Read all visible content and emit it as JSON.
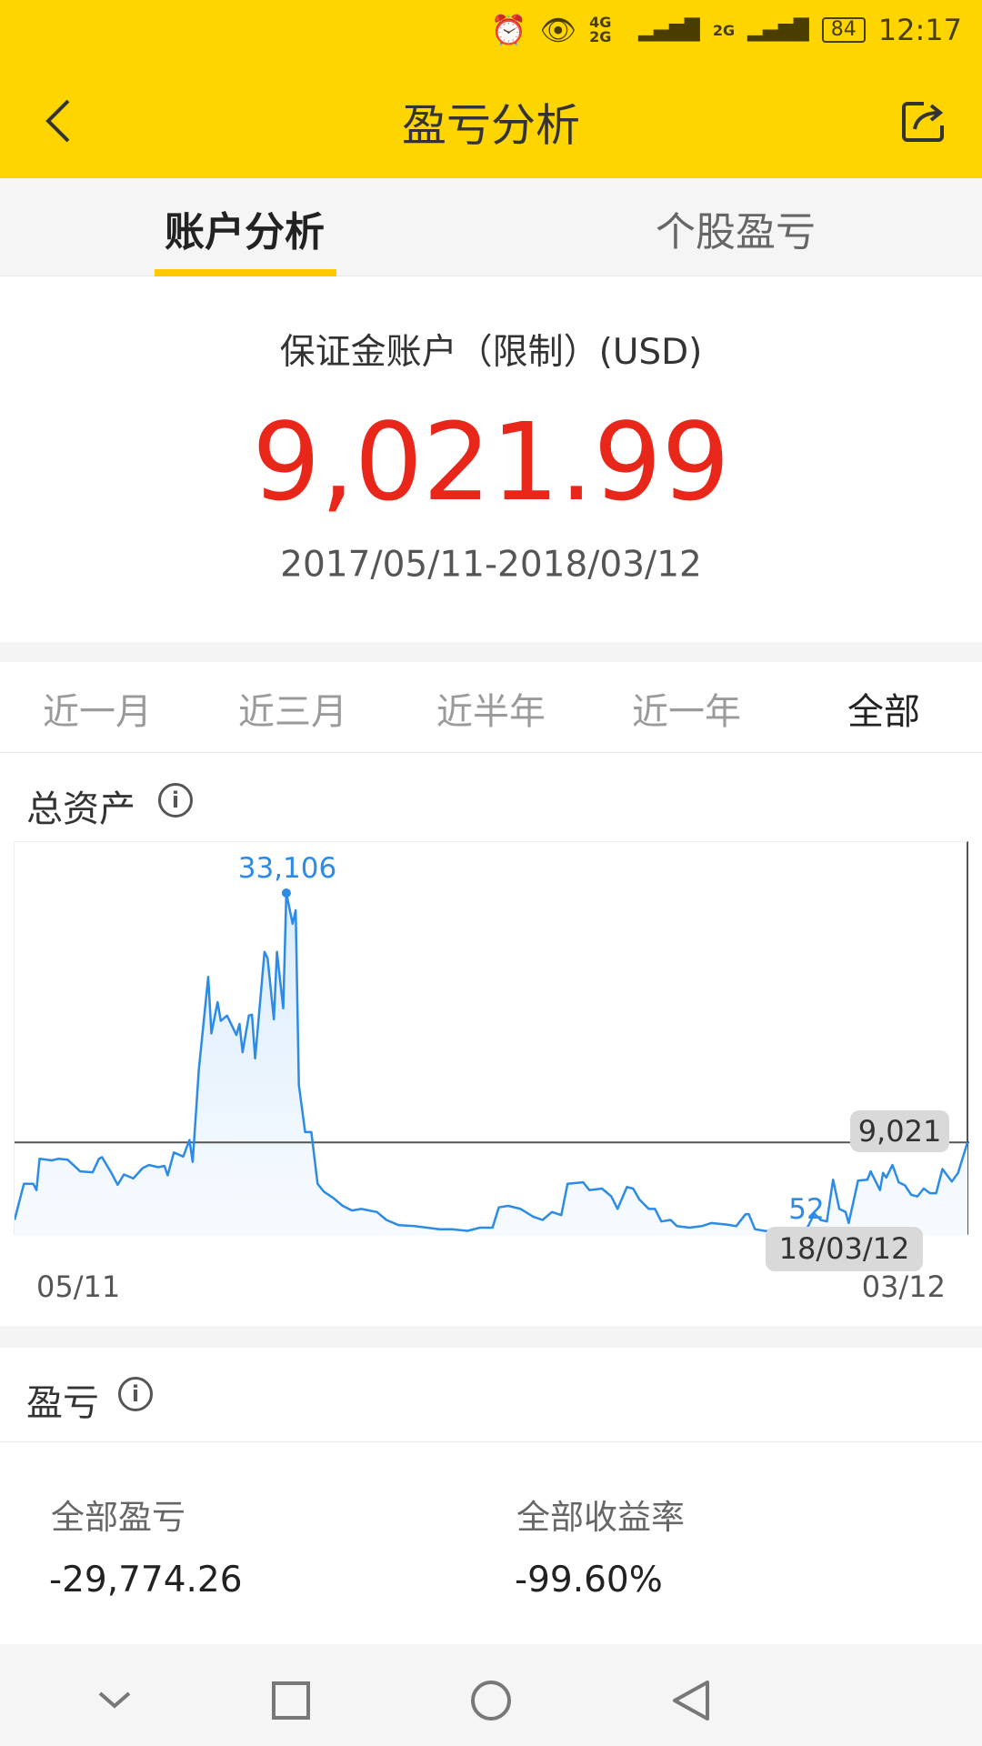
{
  "status_bar": {
    "battery": "84",
    "time": "12:17",
    "signal_1": "4G 2G",
    "signal_2": "2G"
  },
  "header": {
    "title": "盈亏分析",
    "back_icon": "chevron-left-icon",
    "share_icon": "share-icon"
  },
  "tabs": [
    {
      "label": "账户分析",
      "selected": true
    },
    {
      "label": "个股盈亏",
      "selected": false
    }
  ],
  "account": {
    "label": "保证金账户（限制）(USD)",
    "value": "9,021.99",
    "date_range": "2017/05/11-2018/03/12",
    "value_color": "#e8261a"
  },
  "periods": [
    {
      "label": "近一月"
    },
    {
      "label": "近三月"
    },
    {
      "label": "近半年"
    },
    {
      "label": "近一年"
    },
    {
      "label": "全部",
      "selected": true
    }
  ],
  "assets_section": {
    "title": "总资产"
  },
  "chart_data": {
    "type": "area",
    "line_color": "#2b8be6",
    "x_start_label": "05/11",
    "x_end_label": "03/12",
    "max_label": "33,106",
    "min_label": "52",
    "current_label": "9,021",
    "tooltip_date": "18/03/12",
    "ylim": [
      0,
      33106
    ],
    "points": [
      [
        "2017-05-11",
        1540
      ],
      [
        "2017-05-14",
        5023
      ],
      [
        "2017-05-17",
        5020
      ],
      [
        "2017-05-18",
        4420
      ],
      [
        "2017-05-19",
        7440
      ],
      [
        "2017-05-23",
        7290
      ],
      [
        "2017-05-25",
        7440
      ],
      [
        "2017-05-28",
        7350
      ],
      [
        "2017-06-01",
        6230
      ],
      [
        "2017-06-05",
        6140
      ],
      [
        "2017-06-07",
        7440
      ],
      [
        "2017-06-08",
        7600
      ],
      [
        "2017-06-11",
        6080
      ],
      [
        "2017-06-13",
        4930
      ],
      [
        "2017-06-15",
        5930
      ],
      [
        "2017-06-18",
        5540
      ],
      [
        "2017-06-21",
        6540
      ],
      [
        "2017-06-23",
        6840
      ],
      [
        "2017-06-26",
        6630
      ],
      [
        "2017-06-28",
        6750
      ],
      [
        "2017-06-29",
        5840
      ],
      [
        "2017-07-01",
        8050
      ],
      [
        "2017-07-04",
        7660
      ],
      [
        "2017-07-06",
        9260
      ],
      [
        "2017-07-07",
        7140
      ],
      [
        "2017-07-09",
        16070
      ],
      [
        "2017-07-12",
        25000
      ],
      [
        "2017-07-13",
        19550
      ],
      [
        "2017-07-15",
        22570
      ],
      [
        "2017-07-16",
        20760
      ],
      [
        "2017-07-18",
        21270
      ],
      [
        "2017-07-21",
        19400
      ],
      [
        "2017-07-22",
        20460
      ],
      [
        "2017-07-23",
        17730
      ],
      [
        "2017-07-25",
        21270
      ],
      [
        "2017-07-26",
        21360
      ],
      [
        "2017-07-27",
        17130
      ],
      [
        "2017-07-30",
        27420
      ],
      [
        "2017-07-31",
        26810
      ],
      [
        "2017-08-02",
        20910
      ],
      [
        "2017-08-03",
        27420
      ],
      [
        "2017-08-05",
        21970
      ],
      [
        "2017-08-06",
        33106
      ],
      [
        "2017-08-08",
        30140
      ],
      [
        "2017-08-09",
        31440
      ],
      [
        "2017-08-10",
        14560
      ],
      [
        "2017-08-12",
        10020
      ],
      [
        "2017-08-14",
        10020
      ],
      [
        "2017-08-16",
        5020
      ],
      [
        "2017-08-18",
        4270
      ],
      [
        "2017-08-21",
        3660
      ],
      [
        "2017-08-24",
        2900
      ],
      [
        "2017-08-27",
        2450
      ],
      [
        "2017-08-30",
        2600
      ],
      [
        "2017-09-04",
        2300
      ],
      [
        "2017-09-07",
        1540
      ],
      [
        "2017-09-11",
        1030
      ],
      [
        "2017-09-16",
        940
      ],
      [
        "2017-09-20",
        790
      ],
      [
        "2017-09-24",
        640
      ],
      [
        "2017-09-28",
        640
      ],
      [
        "2017-10-03",
        480
      ],
      [
        "2017-10-07",
        790
      ],
      [
        "2017-10-11",
        790
      ],
      [
        "2017-10-13",
        2750
      ],
      [
        "2017-10-16",
        2900
      ],
      [
        "2017-10-20",
        2600
      ],
      [
        "2017-10-24",
        1850
      ],
      [
        "2017-10-27",
        1540
      ],
      [
        "2017-10-30",
        2300
      ],
      [
        "2017-11-02",
        2000
      ],
      [
        "2017-11-04",
        5020
      ],
      [
        "2017-11-09",
        5170
      ],
      [
        "2017-11-11",
        4420
      ],
      [
        "2017-11-15",
        4570
      ],
      [
        "2017-11-18",
        3810
      ],
      [
        "2017-11-20",
        2600
      ],
      [
        "2017-11-23",
        4720
      ],
      [
        "2017-11-25",
        4570
      ],
      [
        "2017-11-27",
        3510
      ],
      [
        "2017-11-30",
        2600
      ],
      [
        "2017-12-02",
        2600
      ],
      [
        "2017-12-04",
        1390
      ],
      [
        "2017-12-07",
        1540
      ],
      [
        "2017-12-09",
        940
      ],
      [
        "2017-12-13",
        790
      ],
      [
        "2017-12-17",
        940
      ],
      [
        "2017-12-20",
        1240
      ],
      [
        "2017-12-25",
        1090
      ],
      [
        "2017-12-28",
        940
      ],
      [
        "2017-12-31",
        2090
      ],
      [
        "2018-01-01",
        2090
      ],
      [
        "2018-01-03",
        640
      ],
      [
        "2018-01-06",
        480
      ],
      [
        "2018-01-10",
        390
      ],
      [
        "2018-01-18",
        52
      ],
      [
        "2018-01-20",
        940
      ],
      [
        "2018-01-22",
        2150
      ],
      [
        "2018-01-24",
        1540
      ],
      [
        "2018-01-26",
        1390
      ],
      [
        "2018-01-28",
        5420
      ],
      [
        "2018-01-30",
        2600
      ],
      [
        "2018-02-01",
        2300
      ],
      [
        "2018-02-02",
        1240
      ],
      [
        "2018-02-05",
        5330
      ],
      [
        "2018-02-08",
        5420
      ],
      [
        "2018-02-09",
        6230
      ],
      [
        "2018-02-12",
        4420
      ],
      [
        "2018-02-13",
        6080
      ],
      [
        "2018-02-14",
        5630
      ],
      [
        "2018-02-16",
        6840
      ],
      [
        "2018-02-18",
        5170
      ],
      [
        "2018-02-20",
        4870
      ],
      [
        "2018-02-22",
        3960
      ],
      [
        "2018-02-24",
        3810
      ],
      [
        "2018-02-26",
        4570
      ],
      [
        "2018-02-28",
        4120
      ],
      [
        "2018-03-02",
        4120
      ],
      [
        "2018-03-04",
        6450
      ],
      [
        "2018-03-07",
        5240
      ],
      [
        "2018-03-09",
        6080
      ],
      [
        "2018-03-12",
        9021
      ]
    ]
  },
  "pnl_section": {
    "title": "盈亏",
    "total_pnl_label": "全部盈亏",
    "total_pnl_value": "-29,774.26",
    "total_return_label": "全部收益率",
    "total_return_value": "-99.60%"
  },
  "nav_bar": {
    "icons": [
      "chevron-down-icon",
      "square-icon",
      "circle-icon",
      "back-triangle-icon"
    ]
  }
}
